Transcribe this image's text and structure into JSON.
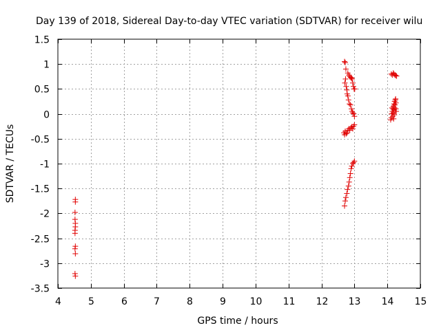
{
  "chart_data": {
    "type": "scatter",
    "title": "Day 139 of 2018, Sidereal Day-to-day VTEC variation (SDTVAR) for receiver wilu",
    "xlabel": "GPS time / hours",
    "ylabel": "SDTVAR / TECUs",
    "xlim": [
      4,
      15
    ],
    "ylim": [
      -3.5,
      1.5
    ],
    "xticks": [
      4,
      5,
      6,
      7,
      8,
      9,
      10,
      11,
      12,
      13,
      14,
      15
    ],
    "yticks": [
      -3.5,
      -3,
      -2.5,
      -2,
      -1.5,
      -1,
      -0.5,
      0,
      0.5,
      1,
      1.5
    ],
    "xtick_labels": [
      "4",
      "5",
      "6",
      "7",
      "8",
      "9",
      "10",
      "11",
      "12",
      "13",
      "14",
      "15"
    ],
    "ytick_labels": [
      "-3.5",
      "-3",
      "-2.5",
      "-2",
      "-1.5",
      "-1",
      "-0.5",
      "0",
      "0.5",
      "1",
      "1.5"
    ],
    "grid": true,
    "marker": "+",
    "series": [
      {
        "name": "SDTVAR",
        "color": "#e00000",
        "points": [
          [
            4.53,
            -1.72
          ],
          [
            4.53,
            -1.77
          ],
          [
            4.52,
            -1.98
          ],
          [
            4.52,
            -2.12
          ],
          [
            4.53,
            -2.2
          ],
          [
            4.53,
            -2.27
          ],
          [
            4.52,
            -2.34
          ],
          [
            4.52,
            -2.4
          ],
          [
            4.53,
            -2.66
          ],
          [
            4.52,
            -2.71
          ],
          [
            4.53,
            -2.81
          ],
          [
            4.52,
            -3.21
          ],
          [
            4.53,
            -3.26
          ],
          [
            12.7,
            1.05
          ],
          [
            12.72,
            1.03
          ],
          [
            12.74,
            0.9
          ],
          [
            12.73,
            0.7
          ],
          [
            12.71,
            0.62
          ],
          [
            12.75,
            0.55
          ],
          [
            12.77,
            0.48
          ],
          [
            12.78,
            0.4
          ],
          [
            12.8,
            0.36
          ],
          [
            12.8,
            0.82
          ],
          [
            12.83,
            0.78
          ],
          [
            12.86,
            0.75
          ],
          [
            12.89,
            0.73
          ],
          [
            12.91,
            0.72
          ],
          [
            12.93,
            0.7
          ],
          [
            12.95,
            0.62
          ],
          [
            12.97,
            0.55
          ],
          [
            12.99,
            0.5
          ],
          [
            13.01,
            0.5
          ],
          [
            12.82,
            0.28
          ],
          [
            12.85,
            0.2
          ],
          [
            12.88,
            0.18
          ],
          [
            12.91,
            0.1
          ],
          [
            12.93,
            0.05
          ],
          [
            12.95,
            0.02
          ],
          [
            12.98,
            0.0
          ],
          [
            13.0,
            -0.05
          ],
          [
            12.68,
            -0.38
          ],
          [
            12.7,
            -0.42
          ],
          [
            12.72,
            -0.35
          ],
          [
            12.75,
            -0.4
          ],
          [
            12.78,
            -0.38
          ],
          [
            12.8,
            -0.33
          ],
          [
            12.83,
            -0.3
          ],
          [
            12.86,
            -0.33
          ],
          [
            12.89,
            -0.28
          ],
          [
            12.92,
            -0.26
          ],
          [
            12.95,
            -0.3
          ],
          [
            12.97,
            -0.25
          ],
          [
            13.0,
            -0.22
          ],
          [
            12.7,
            -1.85
          ],
          [
            12.72,
            -1.75
          ],
          [
            12.74,
            -1.68
          ],
          [
            12.77,
            -1.6
          ],
          [
            12.79,
            -1.52
          ],
          [
            12.82,
            -1.45
          ],
          [
            12.84,
            -1.37
          ],
          [
            12.86,
            -1.28
          ],
          [
            12.88,
            -1.2
          ],
          [
            12.9,
            -1.1
          ],
          [
            12.92,
            -1.05
          ],
          [
            12.95,
            -1.0
          ],
          [
            12.97,
            -0.98
          ],
          [
            13.0,
            -0.95
          ],
          [
            14.12,
            0.8
          ],
          [
            14.15,
            0.78
          ],
          [
            14.18,
            0.82
          ],
          [
            14.2,
            0.8
          ],
          [
            14.23,
            0.78
          ],
          [
            14.25,
            0.77
          ],
          [
            14.28,
            0.76
          ],
          [
            14.1,
            -0.12
          ],
          [
            14.12,
            -0.08
          ],
          [
            14.13,
            0.0
          ],
          [
            14.15,
            0.05
          ],
          [
            14.17,
            0.1
          ],
          [
            14.18,
            0.15
          ],
          [
            14.2,
            0.2
          ],
          [
            14.22,
            0.25
          ],
          [
            14.24,
            0.28
          ],
          [
            14.25,
            0.3
          ],
          [
            14.16,
            -0.05
          ],
          [
            14.18,
            0.02
          ],
          [
            14.2,
            0.08
          ],
          [
            14.22,
            0.12
          ],
          [
            14.24,
            0.05
          ],
          [
            14.26,
            0.1
          ],
          [
            14.27,
            0.05
          ],
          [
            14.19,
            -0.1
          ],
          [
            14.14,
            0.12
          ],
          [
            14.21,
            -0.02
          ],
          [
            14.23,
            0.18
          ],
          [
            14.26,
            0.22
          ]
        ]
      }
    ]
  }
}
